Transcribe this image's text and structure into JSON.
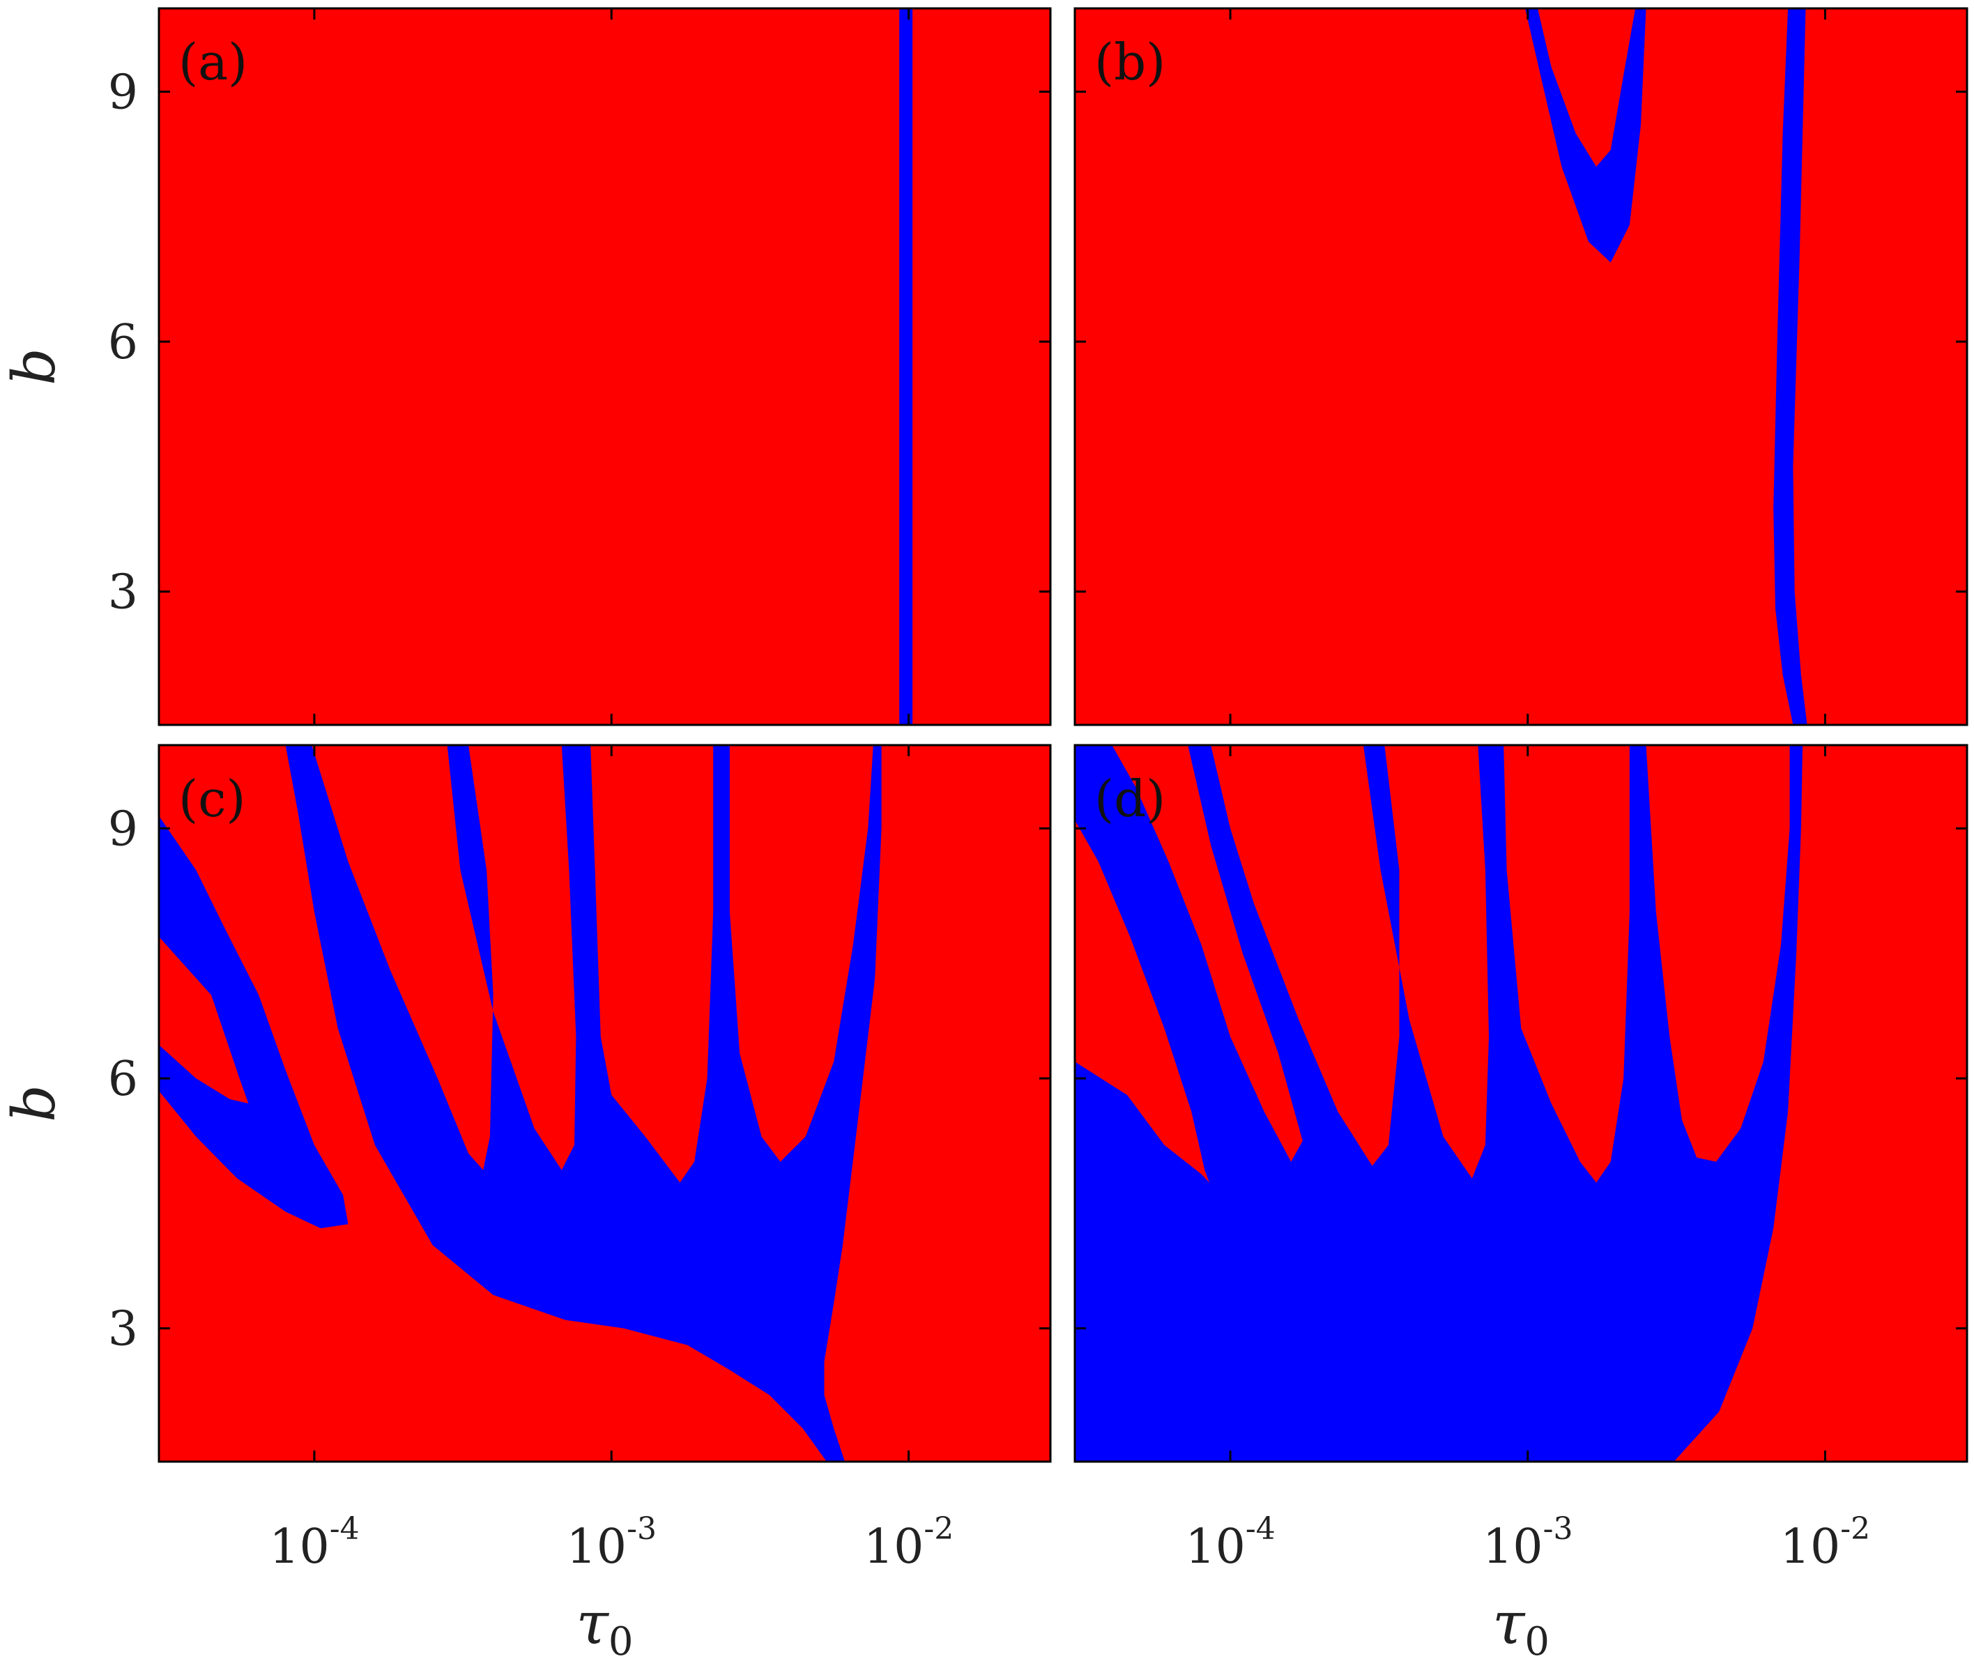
{
  "colors": {
    "stable": "#ff0000",
    "unstable": "#0000ff",
    "frame": "#000000"
  },
  "chart_data": [
    {
      "type": "heatmap",
      "panel": "(a)",
      "xscale": "log",
      "xlim": [
        3e-05,
        0.03
      ],
      "ylim": [
        1.4,
        10
      ],
      "yticks": [
        "3",
        "6",
        "9"
      ],
      "xticks": [],
      "ylabel": "b",
      "xlabel": "",
      "background_color": "#ff0000",
      "regions": [
        {
          "color": "#0000ff",
          "boundary": [
            [
              0.0093,
              10
            ],
            [
              0.0103,
              10
            ],
            [
              0.0103,
              1.4
            ],
            [
              0.0093,
              1.4
            ]
          ]
        }
      ]
    },
    {
      "type": "heatmap",
      "panel": "(b)",
      "xscale": "log",
      "xlim": [
        3e-05,
        0.03
      ],
      "ylim": [
        1.4,
        10
      ],
      "yticks": [],
      "xticks": [],
      "ylabel": "",
      "xlabel": "",
      "background_color": "#ff0000",
      "regions": [
        {
          "color": "#0000ff",
          "boundary": [
            [
              0.00098,
              10
            ],
            [
              0.00108,
              10
            ],
            [
              0.0012,
              9.3
            ],
            [
              0.00145,
              8.5
            ],
            [
              0.0017,
              8.1
            ],
            [
              0.0019,
              8.3
            ],
            [
              0.0021,
              9.2
            ],
            [
              0.0023,
              10
            ],
            [
              0.0025,
              10
            ],
            [
              0.0024,
              8.6
            ],
            [
              0.0022,
              7.4
            ],
            [
              0.0019,
              6.95
            ],
            [
              0.0016,
              7.2
            ],
            [
              0.0013,
              8.1
            ],
            [
              0.00112,
              9.1
            ]
          ]
        },
        {
          "color": "#0000ff",
          "boundary": [
            [
              0.0075,
              10
            ],
            [
              0.0086,
              10
            ],
            [
              0.0082,
              7.0
            ],
            [
              0.0078,
              4.5
            ],
            [
              0.0079,
              3.0
            ],
            [
              0.0083,
              2.0
            ],
            [
              0.0087,
              1.4
            ],
            [
              0.0078,
              1.4
            ],
            [
              0.0072,
              2.0
            ],
            [
              0.0068,
              2.8
            ],
            [
              0.0067,
              4.0
            ],
            [
              0.0069,
              6.0
            ],
            [
              0.0072,
              8.5
            ]
          ]
        }
      ]
    },
    {
      "type": "heatmap",
      "panel": "(c)",
      "xscale": "log",
      "xlim": [
        3e-05,
        0.03
      ],
      "ylim": [
        1.4,
        10
      ],
      "yticks": [
        "3",
        "6",
        "9"
      ],
      "xticks": [
        "10-4",
        "10-3",
        "10-2"
      ],
      "ylabel": "b",
      "xlabel": "τ0",
      "background_color": "#ff0000",
      "regions": [
        {
          "color": "#0000ff",
          "boundary": [
            [
              3e-05,
              9.15
            ],
            [
              3e-05,
              7.7
            ],
            [
              4.5e-05,
              7.0
            ],
            [
              5.6e-05,
              6.0
            ],
            [
              6e-05,
              5.7
            ],
            [
              5.2e-05,
              5.75
            ],
            [
              4e-05,
              6.0
            ],
            [
              3e-05,
              6.4
            ],
            [
              3e-05,
              5.85
            ],
            [
              4e-05,
              5.3
            ],
            [
              5.5e-05,
              4.8
            ],
            [
              8e-05,
              4.4
            ],
            [
              0.000105,
              4.2
            ],
            [
              0.00013,
              4.25
            ],
            [
              0.000125,
              4.6
            ],
            [
              0.0001,
              5.2
            ],
            [
              8e-05,
              6.1
            ],
            [
              6.5e-05,
              7.0
            ],
            [
              5e-05,
              7.8
            ],
            [
              4e-05,
              8.5
            ]
          ]
        },
        {
          "color": "#0000ff",
          "boundary": [
            [
              8e-05,
              10
            ],
            [
              9.8e-05,
              10
            ],
            [
              0.00013,
              8.6
            ],
            [
              0.00018,
              7.3
            ],
            [
              0.00026,
              6.0
            ],
            [
              0.00033,
              5.1
            ],
            [
              0.00037,
              4.9
            ],
            [
              0.00039,
              5.3
            ],
            [
              0.0004,
              7.0
            ],
            [
              0.00038,
              8.5
            ],
            [
              0.00033,
              10
            ],
            [
              0.00028,
              10
            ],
            [
              0.00031,
              8.5
            ],
            [
              0.0004,
              6.8
            ],
            [
              0.00055,
              5.4
            ],
            [
              0.00068,
              4.9
            ],
            [
              0.00075,
              5.2
            ],
            [
              0.00076,
              6.5
            ],
            [
              0.00072,
              8.5
            ],
            [
              0.00068,
              10
            ],
            [
              0.00085,
              10
            ],
            [
              0.00088,
              8.5
            ],
            [
              0.00092,
              6.5
            ],
            [
              0.001,
              5.8
            ],
            [
              0.0013,
              5.3
            ],
            [
              0.0017,
              4.75
            ],
            [
              0.0019,
              5.0
            ],
            [
              0.0021,
              6.0
            ],
            [
              0.0022,
              8.0
            ],
            [
              0.0022,
              10
            ],
            [
              0.0025,
              10
            ],
            [
              0.0025,
              8.0
            ],
            [
              0.0027,
              6.3
            ],
            [
              0.0032,
              5.3
            ],
            [
              0.0037,
              5.0
            ],
            [
              0.0045,
              5.3
            ],
            [
              0.0056,
              6.2
            ],
            [
              0.0065,
              7.6
            ],
            [
              0.0073,
              9.0
            ],
            [
              0.0076,
              10
            ],
            [
              0.0081,
              10
            ],
            [
              0.0081,
              9.0
            ],
            [
              0.0077,
              7.2
            ],
            [
              0.0067,
              5.4
            ],
            [
              0.006,
              4.0
            ],
            [
              0.0056,
              3.3
            ],
            [
              0.0052,
              2.6
            ],
            [
              0.0052,
              2.2
            ],
            [
              0.0056,
              1.8
            ],
            [
              0.0061,
              1.4
            ],
            [
              0.0053,
              1.4
            ],
            [
              0.0044,
              1.8
            ],
            [
              0.0034,
              2.2
            ],
            [
              0.0025,
              2.5
            ],
            [
              0.0018,
              2.8
            ],
            [
              0.0011,
              3.0
            ],
            [
              0.0007,
              3.1
            ],
            [
              0.0004,
              3.4
            ],
            [
              0.00025,
              4.0
            ],
            [
              0.00016,
              5.2
            ],
            [
              0.00012,
              6.6
            ],
            [
              0.0001,
              8.0
            ],
            [
              8.8e-05,
              9.2
            ]
          ]
        }
      ]
    },
    {
      "type": "heatmap",
      "panel": "(d)",
      "xscale": "log",
      "xlim": [
        3e-05,
        0.03
      ],
      "ylim": [
        1.4,
        10
      ],
      "yticks": [],
      "xticks": [
        "10-4",
        "10-3",
        "10-2"
      ],
      "ylabel": "",
      "xlabel": "τ0",
      "background_color": "#ff0000",
      "regions": [
        {
          "color": "#0000ff",
          "boundary": [
            [
              3e-05,
              9.1
            ],
            [
              3.6e-05,
              8.6
            ],
            [
              4.6e-05,
              7.7
            ],
            [
              6e-05,
              6.6
            ],
            [
              7.4e-05,
              5.6
            ],
            [
              8.2e-05,
              4.9
            ],
            [
              8.5e-05,
              4.75
            ],
            [
              8e-05,
              4.85
            ],
            [
              6e-05,
              5.2
            ],
            [
              4.5e-05,
              5.8
            ],
            [
              3e-05,
              6.2
            ],
            [
              3e-05,
              1.4
            ],
            [
              0.0031,
              1.4
            ],
            [
              0.0044,
              2.0
            ],
            [
              0.0057,
              3.0
            ],
            [
              0.0067,
              4.2
            ],
            [
              0.0075,
              5.6
            ],
            [
              0.008,
              7.5
            ],
            [
              0.0083,
              9.0
            ],
            [
              0.0084,
              10
            ],
            [
              0.0076,
              10
            ],
            [
              0.0076,
              9.0
            ],
            [
              0.0071,
              7.6
            ],
            [
              0.0062,
              6.2
            ],
            [
              0.0052,
              5.4
            ],
            [
              0.0043,
              5.0
            ],
            [
              0.0037,
              5.05
            ],
            [
              0.0033,
              5.5
            ],
            [
              0.003,
              6.5
            ],
            [
              0.0027,
              8.0
            ],
            [
              0.0025,
              10
            ],
            [
              0.0022,
              10
            ],
            [
              0.0022,
              8.0
            ],
            [
              0.0021,
              6.0
            ],
            [
              0.0019,
              5.0
            ],
            [
              0.0017,
              4.75
            ],
            [
              0.0015,
              5.0
            ],
            [
              0.0012,
              5.7
            ],
            [
              0.00095,
              6.6
            ],
            [
              0.00085,
              8.5
            ],
            [
              0.00083,
              10
            ],
            [
              0.00068,
              10
            ],
            [
              0.00072,
              8.5
            ],
            [
              0.00074,
              6.5
            ],
            [
              0.00072,
              5.2
            ],
            [
              0.00065,
              4.8
            ],
            [
              0.00052,
              5.3
            ],
            [
              0.0004,
              6.7
            ],
            [
              0.00032,
              8.5
            ],
            [
              0.00028,
              10
            ],
            [
              0.00033,
              10
            ],
            [
              0.00037,
              8.5
            ],
            [
              0.00037,
              6.5
            ],
            [
              0.00034,
              5.2
            ],
            [
              0.0003,
              4.95
            ],
            [
              0.00023,
              5.6
            ],
            [
              0.00017,
              6.7
            ],
            [
              0.00012,
              8.1
            ],
            [
              0.0001,
              9.0
            ],
            [
              8.6e-05,
              10
            ],
            [
              7.2e-05,
              10
            ],
            [
              8.6e-05,
              8.8
            ],
            [
              0.00011,
              7.5
            ],
            [
              0.000145,
              6.3
            ],
            [
              0.000175,
              5.25
            ],
            [
              0.00016,
              5.0
            ],
            [
              0.00013,
              5.6
            ],
            [
              0.0001,
              6.5
            ],
            [
              8e-05,
              7.6
            ],
            [
              6.2e-05,
              8.6
            ],
            [
              4.8e-05,
              9.5
            ],
            [
              4e-05,
              10
            ],
            [
              3e-05,
              10
            ]
          ]
        }
      ]
    }
  ]
}
